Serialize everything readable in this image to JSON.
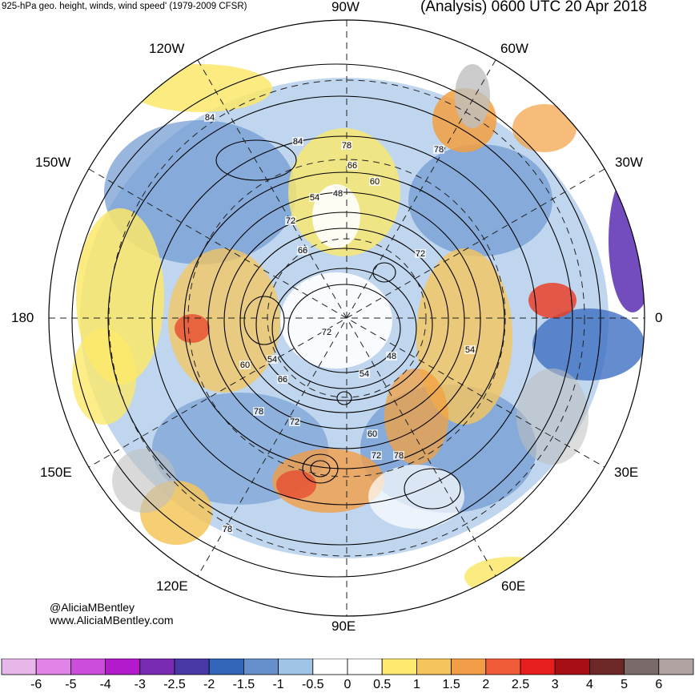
{
  "header": {
    "left_title": "925-hPa geo. height, winds, wind speed' (1979-2009 CFSR)",
    "right_title": "(Analysis) 0600 UTC 20 Apr 2018"
  },
  "map": {
    "projection": "polar stereographic (south pole)",
    "longitude_labels": {
      "top": "90W",
      "upper_left": "120W",
      "upper_right": "60W",
      "left_upper": "150W",
      "right_upper": "30W",
      "left": "180",
      "right": "0",
      "left_lower": "150E",
      "right_lower": "30E",
      "lower_left": "120E",
      "lower_right": "60E",
      "bottom": "90E"
    },
    "contour_labels": [
      "84",
      "84",
      "78",
      "66",
      "60",
      "54",
      "48",
      "72",
      "66",
      "72",
      "72",
      "54",
      "60",
      "54",
      "66",
      "48",
      "54",
      "78",
      "72",
      "60",
      "72",
      "78",
      "78",
      "78"
    ],
    "colors": {
      "negative_strong": "#5b2db3",
      "negative": "#3f6fc2",
      "negative_light": "#9dc1e6",
      "neutral": "#ffffff",
      "positive_light": "#fce86a",
      "positive": "#f3a040",
      "positive_strong": "#e8412a",
      "land": "#bfbfbf"
    }
  },
  "credits": {
    "handle": "@AliciaMBentley",
    "website": "www.AliciaMBentley.com"
  },
  "colorbar": {
    "colors": [
      "#e7b7e9",
      "#e084e8",
      "#cc4ddb",
      "#b21acc",
      "#7a2bb3",
      "#473aa6",
      "#3264b8",
      "#6690cc",
      "#a0c4e6",
      "#ffffff",
      "#ffffff",
      "#fce96e",
      "#f5c55c",
      "#f29d47",
      "#f05b38",
      "#e81d1d",
      "#a50f15",
      "#6e2727",
      "#7a6a6a",
      "#b2a3a3"
    ],
    "ticks": [
      "-6",
      "-5",
      "-4",
      "-3",
      "-2.5",
      "-2",
      "-1.5",
      "-1",
      "-0.5",
      "0",
      "0.5",
      "1",
      "1.5",
      "2",
      "2.5",
      "3",
      "4",
      "5",
      "6"
    ]
  }
}
